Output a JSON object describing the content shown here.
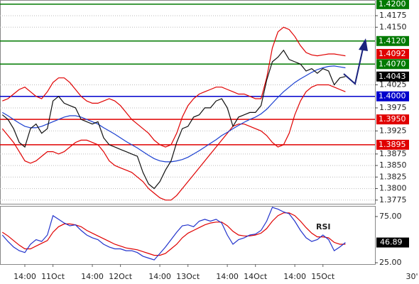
{
  "chart_data": [
    {
      "type": "line",
      "ylim": [
        1.3767,
        1.4209
      ],
      "yticks": [
        1.4175,
        {
          "value": 1.415,
          "label": "1.4150"
        },
        1.4025,
        1.3975,
        1.3925,
        1.3875,
        {
          "value": 1.385,
          "label": "1.3850"
        },
        1.3825,
        {
          "value": 1.38,
          "label": "1.3800"
        },
        1.3775
      ],
      "grid": true,
      "levels": [
        {
          "value": 1.42,
          "label": "1.4200",
          "color": "#007a00",
          "line": true
        },
        {
          "value": 1.412,
          "label": "1.4120",
          "color": "#007a00",
          "line": true
        },
        {
          "value": 1.4092,
          "label": "1.4092",
          "color": "#e00000",
          "line": false
        },
        {
          "value": 1.407,
          "label": "1.4070",
          "color": "#007a00",
          "line": true
        },
        {
          "value": 1.4043,
          "label": "1.4043",
          "color": "#000000",
          "line": false
        },
        {
          "value": 1.4,
          "label": "1.4000",
          "color": "#0000cc",
          "line": true
        },
        {
          "value": 1.395,
          "label": "1.3950",
          "color": "#e00000",
          "line": true
        },
        {
          "value": 1.3895,
          "label": "1.3895",
          "color": "#e00000",
          "line": true
        }
      ],
      "series": [
        {
          "color": "#e00000",
          "values": [
            1.399,
            1.3995,
            1.4005,
            1.4015,
            1.402,
            1.401,
            1.4,
            1.3995,
            1.401,
            1.403,
            1.404,
            1.404,
            1.403,
            1.4015,
            1.4,
            1.399,
            1.3985,
            1.3985,
            1.399,
            1.3995,
            1.399,
            1.398,
            1.3965,
            1.395,
            1.394,
            1.393,
            1.392,
            1.3905,
            1.3895,
            1.389,
            1.3895,
            1.392,
            1.3955,
            1.398,
            1.3995,
            1.4005,
            1.401,
            1.4015,
            1.402,
            1.402,
            1.4015,
            1.401,
            1.4005,
            1.4005,
            1.4,
            1.3995,
            1.3995,
            1.404,
            1.4105,
            1.414,
            1.415,
            1.4145,
            1.413,
            1.411,
            1.4095,
            1.409,
            1.4088,
            1.409,
            1.4092,
            1.4092,
            1.409,
            1.4088
          ]
        },
        {
          "color": "#e00000",
          "values": [
            1.393,
            1.3915,
            1.39,
            1.388,
            1.386,
            1.3855,
            1.386,
            1.387,
            1.388,
            1.388,
            1.3875,
            1.388,
            1.389,
            1.39,
            1.3905,
            1.3905,
            1.39,
            1.3895,
            1.388,
            1.386,
            1.385,
            1.3845,
            1.384,
            1.3835,
            1.3825,
            1.3815,
            1.38,
            1.379,
            1.378,
            1.3775,
            1.3775,
            1.3785,
            1.38,
            1.3815,
            1.383,
            1.3845,
            1.386,
            1.3875,
            1.389,
            1.3905,
            1.392,
            1.3935,
            1.394,
            1.394,
            1.3935,
            1.393,
            1.3925,
            1.3915,
            1.39,
            1.389,
            1.3895,
            1.392,
            1.396,
            1.399,
            1.401,
            1.402,
            1.4025,
            1.4025,
            1.4025,
            1.402,
            1.4015,
            1.401
          ]
        },
        {
          "color": "#1a3fd0",
          "values": [
            1.3965,
            1.3958,
            1.395,
            1.3942,
            1.3935,
            1.3932,
            1.3932,
            1.3935,
            1.394,
            1.3945,
            1.395,
            1.3955,
            1.3958,
            1.3958,
            1.3955,
            1.395,
            1.3945,
            1.394,
            1.3932,
            1.3925,
            1.3918,
            1.391,
            1.3902,
            1.3895,
            1.3888,
            1.388,
            1.3872,
            1.3865,
            1.386,
            1.3858,
            1.3858,
            1.386,
            1.3863,
            1.3868,
            1.3875,
            1.3882,
            1.389,
            1.3898,
            1.3906,
            1.3915,
            1.3922,
            1.393,
            1.3937,
            1.3944,
            1.395,
            1.3955,
            1.3962,
            1.3972,
            1.3985,
            1.3998,
            1.401,
            1.402,
            1.403,
            1.4038,
            1.4045,
            1.4052,
            1.4058,
            1.4062,
            1.4065,
            1.4066,
            1.4064,
            1.4062
          ]
        },
        {
          "color": "#111111",
          "values": [
            1.396,
            1.395,
            1.393,
            1.39,
            1.389,
            1.393,
            1.394,
            1.392,
            1.393,
            1.399,
            1.4,
            1.3985,
            1.398,
            1.3975,
            1.395,
            1.3945,
            1.394,
            1.3945,
            1.391,
            1.3895,
            1.389,
            1.3885,
            1.388,
            1.3875,
            1.387,
            1.3835,
            1.381,
            1.38,
            1.3815,
            1.384,
            1.386,
            1.39,
            1.393,
            1.3935,
            1.3955,
            1.396,
            1.3975,
            1.3975,
            1.399,
            1.3995,
            1.3975,
            1.3935,
            1.3955,
            1.396,
            1.3965,
            1.3965,
            1.398,
            1.4035,
            1.4075,
            1.4085,
            1.41,
            1.408,
            1.4075,
            1.407,
            1.4055,
            1.406,
            1.405,
            1.406,
            1.4055,
            1.4025,
            1.404,
            1.4043
          ]
        }
      ]
    },
    {
      "type": "line",
      "title": "RSI",
      "timeframe": "30'",
      "categories": [
        null,
        null,
        null,
        null,
        "14:00",
        null,
        null,
        null,
        null,
        "11Oct",
        null,
        null,
        null,
        null,
        null,
        null,
        "14:00",
        null,
        null,
        null,
        null,
        "12Oct",
        null,
        null,
        null,
        null,
        null,
        null,
        "14:00",
        null,
        null,
        null,
        null,
        "13Oct",
        null,
        null,
        null,
        null,
        null,
        null,
        "14:00",
        null,
        null,
        null,
        null,
        "14Oct",
        null,
        null,
        null,
        null,
        null,
        null,
        "14:00",
        null,
        null,
        null,
        null,
        "15Oct",
        null,
        null,
        null,
        null
      ],
      "ylim": [
        23.5,
        86.5
      ],
      "yticks": [
        {
          "value": 75,
          "label": "75.00"
        },
        {
          "value": 25,
          "label": "25.00"
        }
      ],
      "last_value": 46.89,
      "series": [
        {
          "color": "#e00000",
          "values": [
            58,
            54,
            49,
            44,
            40,
            40,
            43,
            46,
            49,
            58,
            64,
            67,
            67,
            66,
            64,
            60,
            57,
            54,
            51,
            48,
            45,
            43,
            41,
            40,
            39,
            37,
            35,
            33,
            33,
            35,
            40,
            45,
            52,
            57,
            60,
            63,
            66,
            68,
            69,
            69,
            65,
            59,
            55,
            54,
            54,
            55,
            57,
            62,
            70,
            76,
            79,
            79,
            76,
            70,
            63,
            57,
            53,
            53,
            52,
            47,
            45,
            45
          ]
        },
        {
          "color": "#2233cc",
          "values": [
            55,
            48,
            42,
            38,
            36,
            45,
            50,
            48,
            55,
            76,
            72,
            68,
            65,
            66,
            60,
            55,
            52,
            50,
            45,
            42,
            40,
            40,
            38,
            38,
            36,
            32,
            30,
            28,
            35,
            42,
            50,
            58,
            65,
            66,
            64,
            70,
            72,
            70,
            72,
            68,
            55,
            45,
            50,
            52,
            55,
            56,
            60,
            70,
            85,
            83,
            80,
            78,
            70,
            60,
            52,
            48,
            50,
            55,
            50,
            38,
            42,
            46.89
          ]
        }
      ]
    }
  ]
}
